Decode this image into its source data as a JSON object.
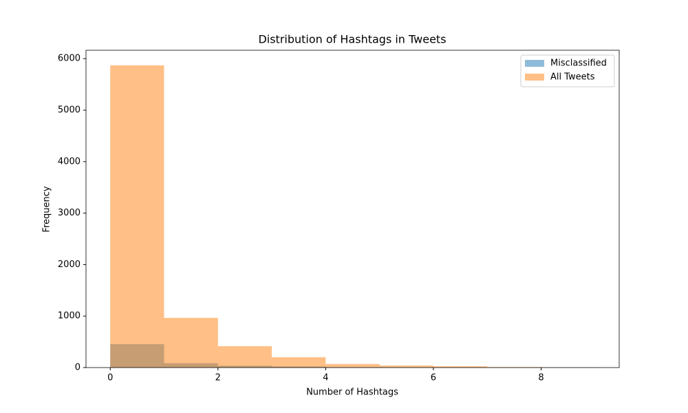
{
  "chart_data": {
    "type": "histogram",
    "title": "Distribution of Hashtags in Tweets",
    "xlabel": "Number of Hashtags",
    "ylabel": "Frequency",
    "bins": [
      0,
      1,
      2,
      3,
      4,
      5,
      6,
      7,
      8,
      9
    ],
    "series": [
      {
        "name": "Misclassified",
        "color": "#1f77b4",
        "alpha": 0.5,
        "values": [
          455,
          85,
          35,
          20,
          8,
          5,
          3,
          1,
          1
        ]
      },
      {
        "name": "All Tweets",
        "color": "#ff7f0e",
        "alpha": 0.5,
        "values": [
          5870,
          965,
          415,
          200,
          70,
          40,
          25,
          10,
          5
        ]
      }
    ],
    "xlim": [
      -0.45,
      9.45
    ],
    "ylim": [
      0,
      6163.5
    ],
    "xticks": [
      0,
      2,
      4,
      6,
      8
    ],
    "yticks": [
      0,
      1000,
      2000,
      3000,
      4000,
      5000,
      6000
    ],
    "legend": "upper right"
  }
}
